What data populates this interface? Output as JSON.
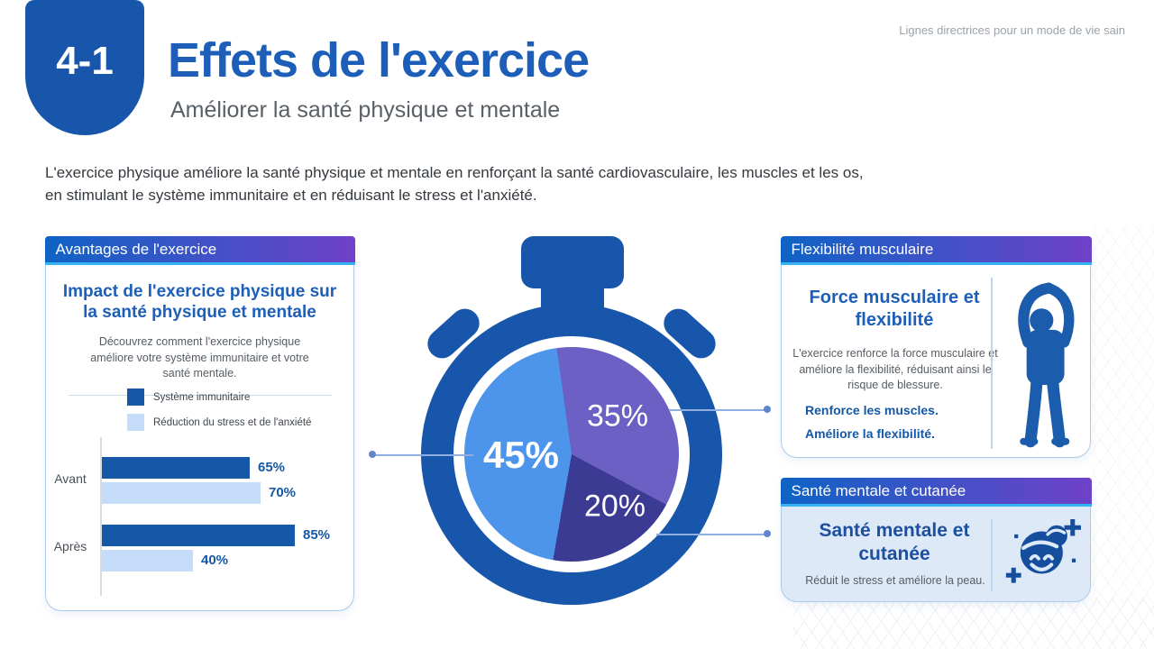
{
  "page": {
    "badge": "4-1",
    "title": "Effets de l'exercice",
    "subtitle": "Améliorer la santé physique et mentale",
    "tagline": "Lignes directrices pour un mode de vie sain",
    "intro": "L'exercice physique améliore la santé physique et mentale en renforçant la santé cardiovasculaire, les muscles et les os, en stimulant le système immunitaire et en réduisant le stress et l'anxiété."
  },
  "left_card": {
    "header": "Avantages de l'exercice",
    "title": "Impact de l'exercice physique sur la santé physique et mentale",
    "subtitle": "Découvrez comment l'exercice physique améliore votre système immunitaire et votre santé mentale."
  },
  "flex_card": {
    "header": "Flexibilité musculaire",
    "title": "Force musculaire et flexibilité",
    "body": "L'exercice renforce la force musculaire et améliore la flexibilité, réduisant ainsi le risque de blessure.",
    "point1": "Renforce les muscles.",
    "point2": "Améliore la flexibilité.",
    "icon": "stretching-person-icon"
  },
  "mental_card": {
    "header": "Santé mentale et cutanée",
    "title": "Santé mentale et cutanée",
    "body": "Réduit le stress et améliore la peau.",
    "icon": "face-sparkle-icon"
  },
  "colors": {
    "brand_blue": "#1756AB",
    "title_blue": "#1D5FB8",
    "header_gradient_start": "#0F63C5",
    "header_gradient_end": "#6F41C8",
    "header_underline": "#35B4F1",
    "card_border": "#A9CBEE",
    "mental_card_bg": "#DEE9F8",
    "connector": "#8FAEE2"
  },
  "chart_data": [
    {
      "type": "bar",
      "orientation": "horizontal",
      "title": "Impact de l'exercice physique sur la santé physique et mentale",
      "categories": [
        "Avant",
        "Après"
      ],
      "series": [
        {
          "name": "Système immunitaire",
          "color": "#1458A7",
          "values": [
            65,
            85
          ]
        },
        {
          "name": "Réduction du stress et de l'anxiété",
          "color": "#C5DDF9",
          "values": [
            70,
            40
          ]
        }
      ],
      "value_label_format": "{value}%",
      "xlim": [
        0,
        100
      ],
      "grid": false,
      "legend_position": "top"
    },
    {
      "type": "pie",
      "title": "Répartition (cadran du chronomètre)",
      "start_angle_deg": -8,
      "slices": [
        {
          "label": "35%",
          "value": 35,
          "color": "#6C60C4"
        },
        {
          "label": "20%",
          "value": 20,
          "color": "#3C3B94"
        },
        {
          "label": "45%",
          "value": 45,
          "color": "#4D94EB"
        }
      ]
    }
  ]
}
